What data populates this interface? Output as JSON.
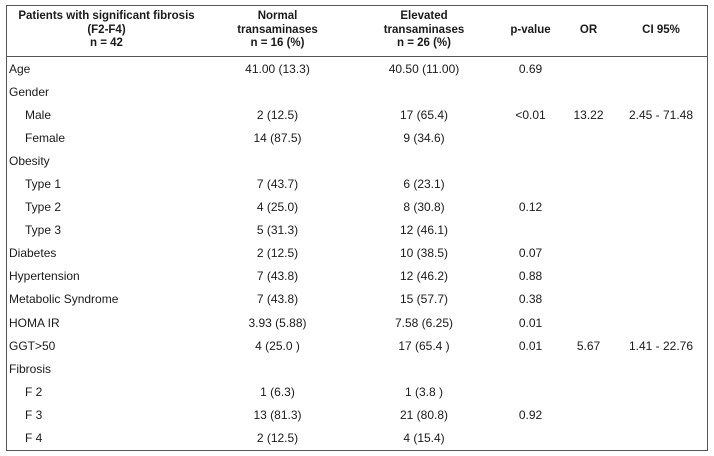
{
  "header": {
    "col0": [
      "Patients with significant fibrosis",
      "(F2-F4)",
      "n = 42"
    ],
    "col1": [
      "Normal",
      "transaminases",
      "n = 16 (%)"
    ],
    "col2": [
      "Elevated",
      "transaminases",
      "n = 26 (%)"
    ],
    "col3": "p-value",
    "col4": "OR",
    "col5": "CI 95%"
  },
  "rows": [
    {
      "label": "Age",
      "indent": false,
      "normal": "41.00 (13.3)",
      "elevated": "40.50 (11.00)",
      "p": "0.69",
      "or": "",
      "ci": ""
    },
    {
      "label": "Gender",
      "indent": false,
      "normal": "",
      "elevated": "",
      "p": "",
      "or": "",
      "ci": ""
    },
    {
      "label": "Male",
      "indent": true,
      "normal": "2 (12.5)",
      "elevated": "17 (65.4)",
      "p": "<0.01",
      "or": "13.22",
      "ci": "2.45 - 71.48"
    },
    {
      "label": "Female",
      "indent": true,
      "normal": "14 (87.5)",
      "elevated": "9 (34.6)",
      "p": "",
      "or": "",
      "ci": ""
    },
    {
      "label": "Obesity",
      "indent": false,
      "normal": "",
      "elevated": "",
      "p": "",
      "or": "",
      "ci": ""
    },
    {
      "label": "Type 1",
      "indent": true,
      "normal": "7 (43.7)",
      "elevated": "6 (23.1)",
      "p": "",
      "or": "",
      "ci": ""
    },
    {
      "label": "Type 2",
      "indent": true,
      "normal": "4 (25.0)",
      "elevated": "8 (30.8)",
      "p": "0.12",
      "or": "",
      "ci": ""
    },
    {
      "label": "Type 3",
      "indent": true,
      "normal": "5 (31.3)",
      "elevated": "12 (46.1)",
      "p": "",
      "or": "",
      "ci": ""
    },
    {
      "label": "Diabetes",
      "indent": false,
      "normal": "2 (12.5)",
      "elevated": "10 (38.5)",
      "p": "0.07",
      "or": "",
      "ci": ""
    },
    {
      "label": "Hypertension",
      "indent": false,
      "normal": "7 (43.8)",
      "elevated": "12 (46.2)",
      "p": "0.88",
      "or": "",
      "ci": ""
    },
    {
      "label": "Metabolic Syndrome",
      "indent": false,
      "normal": "7 (43.8)",
      "elevated": "15 (57.7)",
      "p": "0.38",
      "or": "",
      "ci": ""
    },
    {
      "label": "HOMA IR",
      "indent": false,
      "normal": "3.93 (5.88)",
      "elevated": "7.58 (6.25)",
      "p": "0.01",
      "or": "",
      "ci": ""
    },
    {
      "label": "GGT>50",
      "indent": false,
      "normal": "4 (25.0 )",
      "elevated": "17 (65.4 )",
      "p": "0.01",
      "or": "5.67",
      "ci": "1.41 - 22.76"
    },
    {
      "label": "Fibrosis",
      "indent": false,
      "normal": "",
      "elevated": "",
      "p": "",
      "or": "",
      "ci": ""
    },
    {
      "label": "F 2",
      "indent": true,
      "normal": "1 (6.3)",
      "elevated": "1 (3.8 )",
      "p": "",
      "or": "",
      "ci": ""
    },
    {
      "label": "F 3",
      "indent": true,
      "normal": "13 (81.3)",
      "elevated": "21 (80.8)",
      "p": "0.92",
      "or": "",
      "ci": ""
    },
    {
      "label": "F 4",
      "indent": true,
      "normal": "2 (12.5)",
      "elevated": "4 (15.4)",
      "p": "",
      "or": "",
      "ci": ""
    }
  ]
}
